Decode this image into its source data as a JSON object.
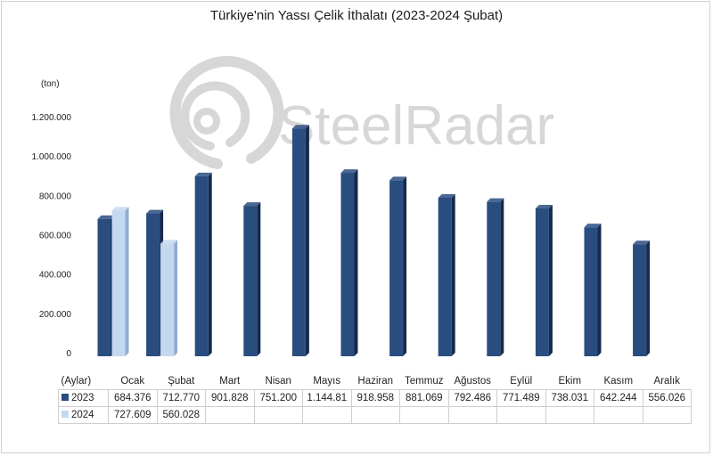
{
  "title": "Türkiye'nin Yassı Çelik İthalatı (2023-2024 Şubat)",
  "unit_label": "(ton)",
  "watermark": "SteelRadar",
  "colors": {
    "series_2023": "#2a4d80",
    "series_2023_side": "#152a4c",
    "series_2024": "#c4d9f0",
    "series_2024_side": "#8faed2",
    "watermark": "#b8b8b8"
  },
  "table": {
    "header_label": "(Aylar)",
    "rows": [
      {
        "label": "2023",
        "values": [
          "684.376",
          "712.770",
          "901.828",
          "751.200",
          "1.144.81",
          "918.958",
          "881.069",
          "792.486",
          "771.489",
          "738.031",
          "642.244",
          "556.026"
        ]
      },
      {
        "label": "2024",
        "values": [
          "727.609",
          "560.028",
          "",
          "",
          "",
          "",
          "",
          "",
          "",
          "",
          "",
          ""
        ]
      }
    ]
  },
  "chart_data": {
    "type": "bar",
    "title": "Türkiye'nin Yassı Çelik İthalatı (2023-2024 Şubat)",
    "ylabel": "(ton)",
    "xlabel": "(Aylar)",
    "categories": [
      "Ocak",
      "Şubat",
      "Mart",
      "Nisan",
      "Mayıs",
      "Haziran",
      "Temmuz",
      "Ağustos",
      "Eylül",
      "Ekim",
      "Kasım",
      "Aralık"
    ],
    "series": [
      {
        "name": "2023",
        "values": [
          684376,
          712770,
          901828,
          751200,
          1144810,
          918958,
          881069,
          792486,
          771489,
          738031,
          642244,
          556026
        ]
      },
      {
        "name": "2024",
        "values": [
          727609,
          560028,
          null,
          null,
          null,
          null,
          null,
          null,
          null,
          null,
          null,
          null
        ]
      }
    ],
    "yticks": [
      "0",
      "200.000",
      "400.000",
      "600.000",
      "800.000",
      "1.000.000",
      "1.200.000"
    ],
    "ytick_values": [
      0,
      200000,
      400000,
      600000,
      800000,
      1000000,
      1200000
    ],
    "ylim": [
      0,
      1200000
    ],
    "grid": false,
    "legend": "table-bottom"
  }
}
